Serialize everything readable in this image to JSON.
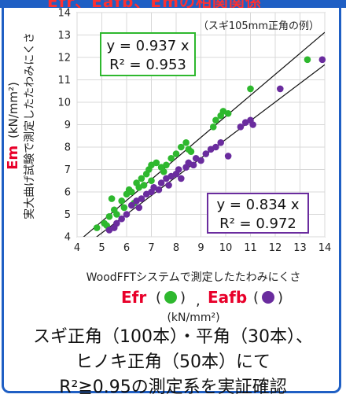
{
  "title": "Efr、Eafb、Emの相関関係",
  "chart_data": {
    "type": "scatter",
    "note": "（スギ105mm正角の例）",
    "xlim": [
      4,
      14
    ],
    "ylim": [
      4,
      14
    ],
    "xticks": [
      4,
      5,
      6,
      7,
      8,
      9,
      10,
      11,
      12,
      13,
      14
    ],
    "yticks": [
      4,
      5,
      6,
      7,
      8,
      9,
      10,
      11,
      12,
      13,
      14
    ],
    "ylabel_main": "Em",
    "ylabel_prefix": "実大曲げ試験で測定したたわみにくさ",
    "ylabel_unit": "(kN/mm²)",
    "xlabel_line1": "WoodFFTシステムで測定したたわみにくさ",
    "xlabel_series1": "Efr",
    "xlabel_series2": "Eafb",
    "xlabel_unit": "(kN/mm²)",
    "colors": {
      "efr": "#2eb82e",
      "eafb": "#6a2c9e",
      "accent": "#e8002a",
      "frame": "#1f5fc4"
    },
    "series": [
      {
        "key": "efr",
        "color": "#2eb82e",
        "fit_label": "y = 0.937 x",
        "r2_label": "R² = 0.953",
        "slope": 0.937,
        "points": [
          [
            4.8,
            4.4
          ],
          [
            5.1,
            4.6
          ],
          [
            5.2,
            4.5
          ],
          [
            5.3,
            4.9
          ],
          [
            5.5,
            5.2
          ],
          [
            5.4,
            5.7
          ],
          [
            5.6,
            5.0
          ],
          [
            5.8,
            5.6
          ],
          [
            5.9,
            5.3
          ],
          [
            6.0,
            5.9
          ],
          [
            6.1,
            6.1
          ],
          [
            6.2,
            6.0
          ],
          [
            6.3,
            5.5
          ],
          [
            6.4,
            6.4
          ],
          [
            6.5,
            6.2
          ],
          [
            6.6,
            6.6
          ],
          [
            6.7,
            6.3
          ],
          [
            6.8,
            6.8
          ],
          [
            6.9,
            7.0
          ],
          [
            7.0,
            7.2
          ],
          [
            7.0,
            6.5
          ],
          [
            7.2,
            7.3
          ],
          [
            7.4,
            7.1
          ],
          [
            7.5,
            6.9
          ],
          [
            7.6,
            7.2
          ],
          [
            7.8,
            7.5
          ],
          [
            8.0,
            7.7
          ],
          [
            8.2,
            8.0
          ],
          [
            8.4,
            8.2
          ],
          [
            8.5,
            7.9
          ],
          [
            8.6,
            7.8
          ],
          [
            9.5,
            8.9
          ],
          [
            9.6,
            9.2
          ],
          [
            9.8,
            9.4
          ],
          [
            9.9,
            9.6
          ],
          [
            10.1,
            9.5
          ],
          [
            11.0,
            10.6
          ],
          [
            13.3,
            11.9
          ]
        ]
      },
      {
        "key": "eafb",
        "color": "#6a2c9e",
        "fit_label": "y = 0.834 x",
        "r2_label": "R² = 0.972",
        "slope": 0.834,
        "points": [
          [
            5.3,
            4.3
          ],
          [
            5.5,
            4.4
          ],
          [
            5.6,
            4.6
          ],
          [
            5.8,
            4.8
          ],
          [
            6.0,
            5.0
          ],
          [
            6.2,
            5.4
          ],
          [
            6.4,
            5.6
          ],
          [
            6.5,
            5.3
          ],
          [
            6.6,
            5.7
          ],
          [
            6.8,
            5.9
          ],
          [
            7.0,
            6.0
          ],
          [
            7.1,
            6.2
          ],
          [
            7.3,
            6.1
          ],
          [
            7.4,
            6.4
          ],
          [
            7.6,
            6.6
          ],
          [
            7.7,
            6.3
          ],
          [
            7.8,
            6.7
          ],
          [
            8.0,
            6.8
          ],
          [
            8.1,
            7.0
          ],
          [
            8.2,
            6.6
          ],
          [
            8.4,
            7.1
          ],
          [
            8.5,
            7.3
          ],
          [
            8.7,
            7.2
          ],
          [
            8.8,
            7.5
          ],
          [
            9.0,
            7.4
          ],
          [
            9.2,
            7.7
          ],
          [
            9.4,
            7.9
          ],
          [
            9.6,
            8.0
          ],
          [
            9.8,
            8.2
          ],
          [
            10.1,
            7.6
          ],
          [
            10.6,
            8.9
          ],
          [
            10.8,
            9.1
          ],
          [
            11.0,
            9.2
          ],
          [
            11.1,
            9.0
          ],
          [
            12.2,
            10.6
          ],
          [
            13.9,
            11.9
          ]
        ]
      }
    ]
  },
  "caption": {
    "line1": "スギ正角（100本）・平角（30本）、",
    "line2": "ヒノキ正角（50本）にて",
    "line3": "R²≧0.95の測定系を実証確認"
  }
}
